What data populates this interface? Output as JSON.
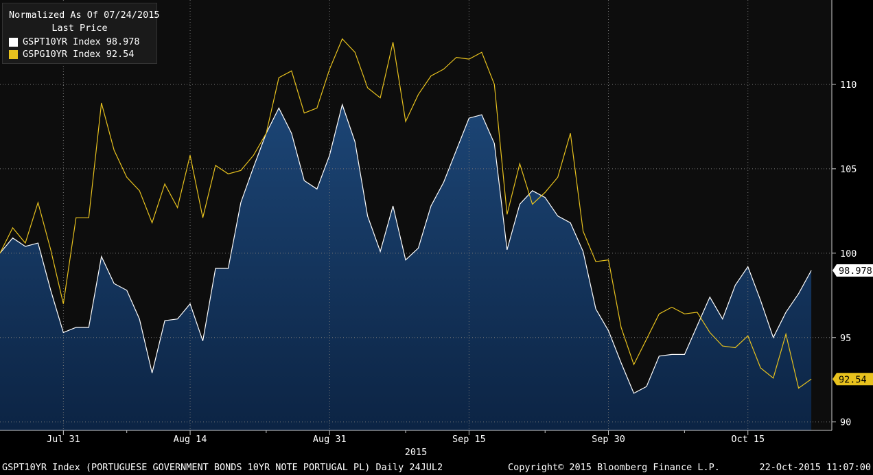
{
  "legend": {
    "title": "Normalized As Of 07/24/2015",
    "subtitle": "Last Price",
    "entries": [
      {
        "name": "GSPT10YR Index",
        "value": "98.978",
        "color": "#ffffff"
      },
      {
        "name": "GSPG10YR Index",
        "value": "92.54",
        "color": "#e8c21e"
      }
    ]
  },
  "footer": {
    "description": "GSPT10YR Index (PORTUGUESE GOVERNMENT BONDS 10YR NOTE PORTUGAL PL)  Daily 24JUL2",
    "copyright": "Copyright© 2015 Bloomberg Finance L.P.",
    "timestamp": "22-Oct-2015 11:07:00"
  },
  "colors": {
    "background": "#0d0d0d",
    "area_fill_top": "#1c4575",
    "area_fill_bottom": "#0c2444",
    "series1_line": "#ffffff",
    "series2_line": "#e8c21e",
    "grid": "#7a7a7a"
  },
  "chart_data": {
    "type": "area",
    "x_tick_labels": [
      "Jul 31",
      "Aug 14",
      "Aug 31",
      "Sep 15",
      "Sep 30",
      "Oct 15"
    ],
    "x_tick_index": [
      5,
      15,
      26,
      37,
      48,
      59
    ],
    "x_minor_tick_index": [
      10,
      21,
      32,
      43,
      54
    ],
    "year_label": "2015",
    "y_ticks": [
      90,
      95,
      100,
      105,
      110
    ],
    "ylim": [
      89.5,
      115
    ],
    "grid": true,
    "legend_position": "top-left",
    "series": [
      {
        "name": "GSPT10YR Index",
        "last_label": "98.978",
        "style": "area",
        "values": [
          100,
          100.9,
          100.4,
          100.6,
          97.8,
          95.3,
          95.6,
          95.6,
          99.8,
          98.2,
          97.8,
          96.1,
          92.9,
          96,
          96.1,
          97,
          94.8,
          99.1,
          99.1,
          103,
          105.1,
          107.1,
          108.6,
          107.1,
          104.3,
          103.8,
          105.8,
          108.8,
          106.6,
          102.2,
          100.1,
          102.8,
          99.6,
          100.3,
          102.8,
          104.2,
          106.1,
          108,
          108.2,
          106.5,
          100.2,
          102.9,
          103.7,
          103.3,
          102.2,
          101.8,
          100.1,
          96.7,
          95.4,
          93.5,
          91.7,
          92.1,
          93.9,
          94,
          94,
          95.7,
          97.4,
          96.1,
          98.1,
          99.2,
          97.2,
          95,
          96.5,
          97.6,
          98.978
        ]
      },
      {
        "name": "GSPG10YR Index",
        "last_label": "92.54",
        "style": "line",
        "values": [
          100,
          101.5,
          100.6,
          103,
          100.2,
          97,
          102.1,
          102.1,
          108.9,
          106.1,
          104.5,
          103.7,
          101.8,
          104.1,
          102.7,
          105.8,
          102.1,
          105.2,
          104.7,
          104.9,
          105.8,
          107.1,
          110.4,
          110.8,
          108.3,
          108.6,
          110.9,
          112.7,
          111.9,
          109.8,
          109.2,
          112.5,
          107.8,
          109.4,
          110.5,
          110.9,
          111.6,
          111.5,
          111.9,
          110,
          102.3,
          105.3,
          102.9,
          103.6,
          104.5,
          107.1,
          101.3,
          99.5,
          99.6,
          95.6,
          93.4,
          94.9,
          96.4,
          96.8,
          96.4,
          96.5,
          95.3,
          94.5,
          94.4,
          95.1,
          93.2,
          92.6,
          95.2,
          92,
          92.54
        ]
      }
    ]
  }
}
